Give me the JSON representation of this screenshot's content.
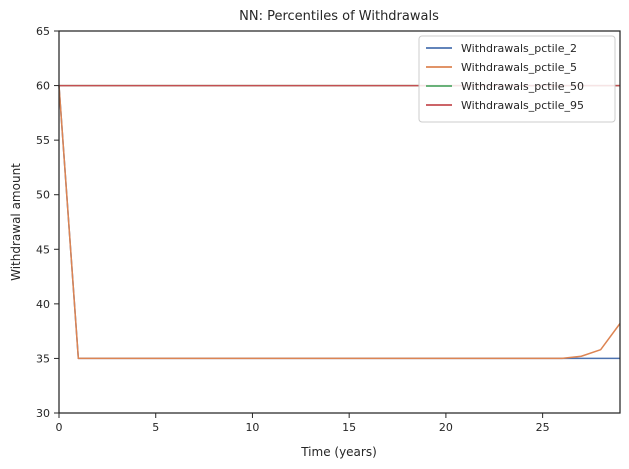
{
  "chart_data": {
    "type": "line",
    "title": "NN: Percentiles of Withdrawals",
    "xlabel": "Time (years)",
    "ylabel": "Withdrawal amount",
    "xlim": [
      0,
      29
    ],
    "ylim": [
      30,
      65
    ],
    "xticks": [
      0,
      5,
      10,
      15,
      20,
      25
    ],
    "yticks": [
      30,
      35,
      40,
      45,
      50,
      55,
      60,
      65
    ],
    "grid": false,
    "legend_position": "top-right",
    "x": [
      0,
      1,
      2,
      3,
      4,
      5,
      6,
      7,
      8,
      9,
      10,
      11,
      12,
      13,
      14,
      15,
      16,
      17,
      18,
      19,
      20,
      21,
      22,
      23,
      24,
      25,
      26,
      27,
      28,
      29
    ],
    "series": [
      {
        "name": "Withdrawals_pctile_2",
        "color": "#4c72b0",
        "values": [
          60,
          35,
          35,
          35,
          35,
          35,
          35,
          35,
          35,
          35,
          35,
          35,
          35,
          35,
          35,
          35,
          35,
          35,
          35,
          35,
          35,
          35,
          35,
          35,
          35,
          35,
          35,
          35,
          35,
          35
        ]
      },
      {
        "name": "Withdrawals_pctile_5",
        "color": "#dd8452",
        "values": [
          60,
          35,
          35,
          35,
          35,
          35,
          35,
          35,
          35,
          35,
          35,
          35,
          35,
          35,
          35,
          35,
          35,
          35,
          35,
          35,
          35,
          35,
          35,
          35,
          35,
          35,
          35,
          35.2,
          35.8,
          38.2
        ]
      },
      {
        "name": "Withdrawals_pctile_50",
        "color": "#55a868",
        "values": [
          60,
          60,
          60,
          60,
          60,
          60,
          60,
          60,
          60,
          60,
          60,
          60,
          60,
          60,
          60,
          60,
          60,
          60,
          60,
          60,
          60,
          60,
          60,
          60,
          60,
          60,
          60,
          60,
          60,
          60
        ]
      },
      {
        "name": "Withdrawals_pctile_95",
        "color": "#c44e52",
        "values": [
          60,
          60,
          60,
          60,
          60,
          60,
          60,
          60,
          60,
          60,
          60,
          60,
          60,
          60,
          60,
          60,
          60,
          60,
          60,
          60,
          60,
          60,
          60,
          60,
          60,
          60,
          60,
          60,
          60,
          60
        ]
      }
    ]
  }
}
